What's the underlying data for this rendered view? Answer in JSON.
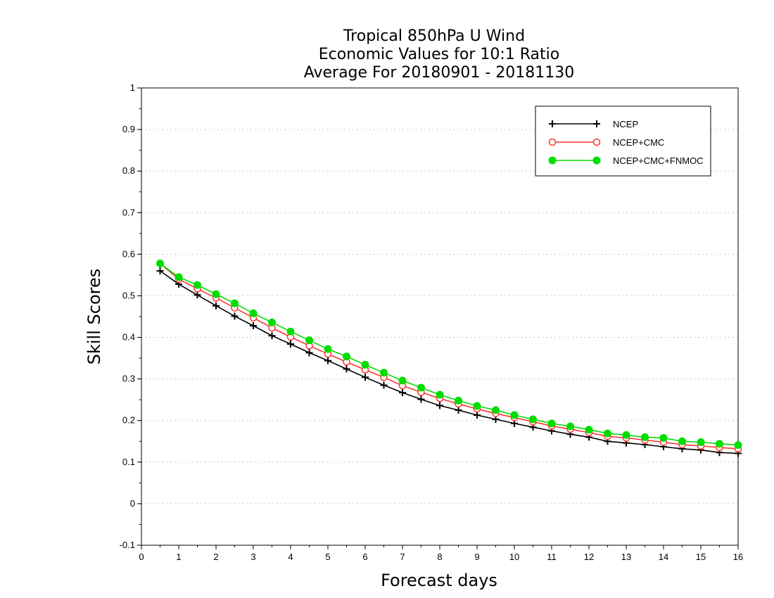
{
  "chart_data": {
    "type": "line",
    "title_lines": [
      "Tropical 850hPa U Wind",
      "Economic Values for 10:1 Ratio",
      "Average For 20180901 - 20181130"
    ],
    "xlabel": "Forecast days",
    "ylabel": "Skill Scores",
    "xlim": [
      0,
      16
    ],
    "ylim": [
      -0.1,
      1
    ],
    "x_ticks": [
      "0",
      "1",
      "2",
      "3",
      "4",
      "5",
      "6",
      "7",
      "8",
      "9",
      "10",
      "11",
      "12",
      "13",
      "14",
      "15",
      "16"
    ],
    "y_ticks": [
      "1",
      "0.9",
      "0.8",
      "0.7",
      "0.6",
      "0.5",
      "0.4",
      "0.3",
      "0.2",
      "0.1",
      "0",
      "-0.1"
    ],
    "grid": "horizontal dotted",
    "legend_position": "top-right",
    "x": [
      0.5,
      1,
      1.5,
      2,
      2.5,
      3,
      3.5,
      4,
      4.5,
      5,
      5.5,
      6,
      6.5,
      7,
      7.5,
      8,
      8.5,
      9,
      9.5,
      10,
      10.5,
      11,
      11.5,
      12,
      12.5,
      13,
      13.5,
      14,
      14.5,
      15,
      15.5,
      16
    ],
    "series": [
      {
        "name": "NCEP",
        "color": "#000000",
        "marker": "plus",
        "values": [
          0.56,
          0.528,
          0.502,
          0.476,
          0.451,
          0.428,
          0.404,
          0.384,
          0.363,
          0.344,
          0.324,
          0.304,
          0.285,
          0.267,
          0.251,
          0.236,
          0.225,
          0.213,
          0.203,
          0.193,
          0.184,
          0.175,
          0.167,
          0.16,
          0.15,
          0.146,
          0.142,
          0.137,
          0.132,
          0.129,
          0.123,
          0.121
        ]
      },
      {
        "name": "NCEP+CMC",
        "color": "#ff3333",
        "marker": "open-circle",
        "values": [
          0.578,
          0.54,
          0.517,
          0.495,
          0.471,
          0.447,
          0.423,
          0.401,
          0.38,
          0.36,
          0.341,
          0.322,
          0.304,
          0.284,
          0.268,
          0.253,
          0.24,
          0.228,
          0.217,
          0.207,
          0.197,
          0.187,
          0.179,
          0.171,
          0.162,
          0.158,
          0.153,
          0.148,
          0.142,
          0.139,
          0.135,
          0.132
        ]
      },
      {
        "name": "NCEP+CMC+FNMOC",
        "color": "#00dd00",
        "marker": "filled-circle",
        "values": [
          0.578,
          0.545,
          0.526,
          0.504,
          0.482,
          0.458,
          0.436,
          0.414,
          0.393,
          0.372,
          0.354,
          0.334,
          0.315,
          0.296,
          0.279,
          0.262,
          0.248,
          0.235,
          0.225,
          0.213,
          0.203,
          0.193,
          0.186,
          0.178,
          0.169,
          0.165,
          0.16,
          0.158,
          0.15,
          0.148,
          0.144,
          0.141
        ]
      }
    ]
  }
}
